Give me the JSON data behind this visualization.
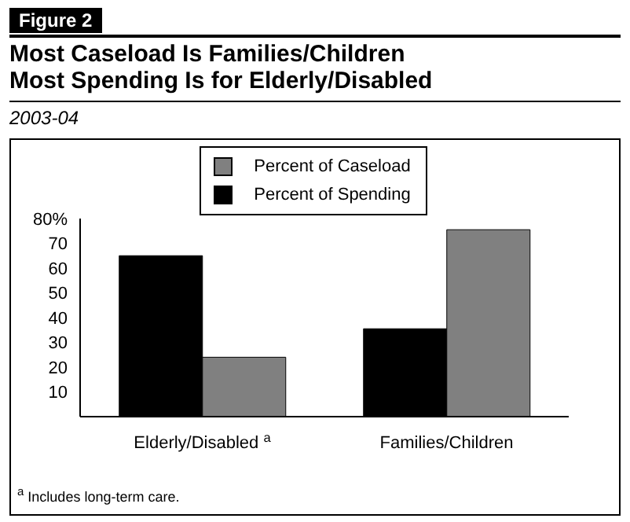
{
  "chart_data": {
    "type": "bar",
    "title": "Most Caseload Is Families/Children\nMost Spending Is for Elderly/Disabled",
    "subtitle": "2003-04",
    "categories": [
      "Elderly/Disabled $^{a}$",
      "Families/Children"
    ],
    "series": [
      {
        "name": "Percent of Spending",
        "color": "#000000",
        "values": [
          65,
          35.5
        ]
      },
      {
        "name": "Percent of Caseload",
        "color": "#808080",
        "values": [
          24,
          75.5
        ]
      }
    ],
    "ylim": [
      0,
      80
    ],
    "yticks": [
      10,
      20,
      30,
      40,
      50,
      60,
      70,
      {
        "value": 80,
        "label": "80%"
      }
    ],
    "legend": "top",
    "grid": false,
    "annotations": [
      "Figure 2",
      "$^{a}$ Includes long-term care."
    ]
  }
}
